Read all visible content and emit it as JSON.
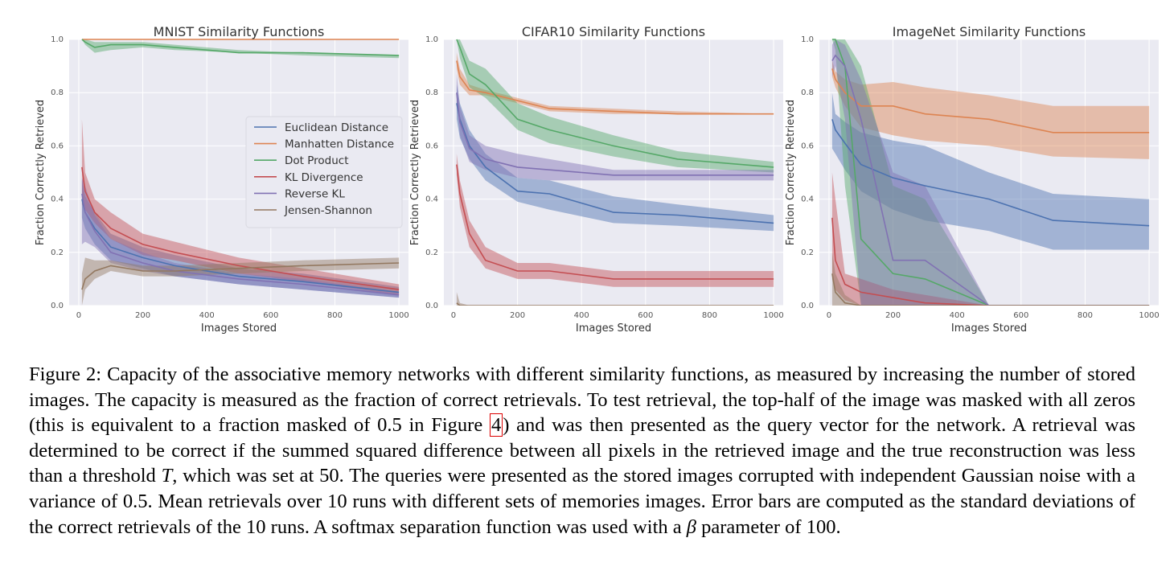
{
  "caption": {
    "part1": "Figure 2: Capacity of the associative memory networks with different similarity functions, as measured by increasing the number of stored images. The capacity is measured as the fraction of correct retrievals. To test retrieval, the top-half of the image was masked with all zeros (this is equivalent to a fraction masked of ",
    "math1": "0.5",
    "part2": " in Figure ",
    "ref": "4",
    "part3": ") and was then presented as the query vector for the network. A retrieval was determined to be correct if the summed squared difference between all pixels in the retrieved image and the true reconstruction was less than a threshold ",
    "math2": "T",
    "part4": ", which was set at ",
    "math3": "50",
    "part5": ". The queries were presented as the stored images corrupted with independent Gaussian noise with a variance of ",
    "math4": "0.5",
    "part6": ". Mean retrievals over 10 runs with different sets of memories images. Error bars are computed as the standard deviations of the correct retrievals of the 10 runs. A softmax separation function was used with a ",
    "math5": "β",
    "part7": " parameter of 100."
  },
  "colors": {
    "Euclidean Distance": "#4c72b0",
    "Manhatten Distance": "#dd8452",
    "Dot Product": "#55a868",
    "KL Divergence": "#c44e52",
    "Reverse KL": "#8172b3",
    "Jensen-Shannon": "#937860"
  },
  "chart_data": [
    {
      "type": "line",
      "title": "MNIST Similarity Functions",
      "xlabel": "Images Stored",
      "ylabel": "Fraction Correctly Retrieved",
      "xlim": [
        -30,
        1030
      ],
      "ylim": [
        0,
        1
      ],
      "xticks": [
        0,
        200,
        400,
        600,
        800,
        1000
      ],
      "yticks": [
        0.0,
        0.2,
        0.4,
        0.6,
        0.8,
        1.0
      ],
      "grid": true,
      "legend": "center-right",
      "x": [
        10,
        20,
        50,
        100,
        200,
        300,
        500,
        700,
        1000
      ],
      "series": [
        {
          "name": "Euclidean Distance",
          "values": [
            0.4,
            0.35,
            0.29,
            0.22,
            0.18,
            0.15,
            0.11,
            0.09,
            0.05
          ],
          "lower": [
            0.33,
            0.29,
            0.23,
            0.17,
            0.14,
            0.11,
            0.08,
            0.06,
            0.03
          ],
          "upper": [
            0.47,
            0.41,
            0.35,
            0.27,
            0.22,
            0.19,
            0.14,
            0.12,
            0.07
          ]
        },
        {
          "name": "Manhatten Distance",
          "values": [
            1.0,
            1.0,
            1.0,
            1.0,
            1.0,
            1.0,
            1.0,
            1.0,
            1.0
          ],
          "lower": [
            1.0,
            1.0,
            1.0,
            1.0,
            1.0,
            1.0,
            1.0,
            1.0,
            1.0
          ],
          "upper": [
            1.0,
            1.0,
            1.0,
            1.0,
            1.0,
            1.0,
            1.0,
            1.0,
            1.0
          ]
        },
        {
          "name": "Dot Product",
          "values": [
            1.0,
            0.99,
            0.97,
            0.98,
            0.98,
            0.97,
            0.95,
            0.95,
            0.94
          ],
          "lower": [
            1.0,
            0.98,
            0.95,
            0.96,
            0.97,
            0.96,
            0.95,
            0.94,
            0.93
          ],
          "upper": [
            1.0,
            1.0,
            0.99,
            0.99,
            0.99,
            0.98,
            0.96,
            0.95,
            0.94
          ]
        },
        {
          "name": "KL Divergence",
          "values": [
            0.52,
            0.43,
            0.35,
            0.29,
            0.23,
            0.2,
            0.15,
            0.11,
            0.06
          ],
          "lower": [
            0.38,
            0.36,
            0.31,
            0.25,
            0.19,
            0.17,
            0.12,
            0.09,
            0.04
          ],
          "upper": [
            0.7,
            0.5,
            0.4,
            0.35,
            0.27,
            0.24,
            0.18,
            0.14,
            0.08
          ]
        },
        {
          "name": "Reverse KL",
          "values": [
            0.42,
            0.35,
            0.28,
            0.2,
            0.16,
            0.13,
            0.1,
            0.08,
            0.04
          ],
          "lower": [
            0.23,
            0.24,
            0.22,
            0.16,
            0.13,
            0.11,
            0.08,
            0.06,
            0.03
          ],
          "upper": [
            0.48,
            0.45,
            0.34,
            0.25,
            0.2,
            0.16,
            0.12,
            0.1,
            0.05
          ]
        },
        {
          "name": "Jensen-Shannon",
          "values": [
            0.06,
            0.1,
            0.13,
            0.15,
            0.13,
            0.13,
            0.14,
            0.15,
            0.16
          ],
          "lower": [
            0.0,
            0.06,
            0.1,
            0.13,
            0.11,
            0.11,
            0.12,
            0.13,
            0.14
          ],
          "upper": [
            0.12,
            0.18,
            0.17,
            0.17,
            0.15,
            0.15,
            0.16,
            0.17,
            0.18
          ]
        }
      ]
    },
    {
      "type": "line",
      "title": "CIFAR10 Similarity Functions",
      "xlabel": "Images Stored",
      "ylabel": "Fraction Correctly Retrieved",
      "xlim": [
        -30,
        1030
      ],
      "ylim": [
        0,
        1
      ],
      "xticks": [
        0,
        200,
        400,
        600,
        800,
        1000
      ],
      "yticks": [
        0.0,
        0.2,
        0.4,
        0.6,
        0.8,
        1.0
      ],
      "grid": true,
      "x": [
        10,
        20,
        50,
        100,
        200,
        300,
        500,
        700,
        1000
      ],
      "series": [
        {
          "name": "Euclidean Distance",
          "values": [
            0.76,
            0.7,
            0.6,
            0.52,
            0.43,
            0.42,
            0.35,
            0.34,
            0.31
          ],
          "lower": [
            0.7,
            0.63,
            0.55,
            0.47,
            0.39,
            0.36,
            0.31,
            0.3,
            0.28
          ],
          "upper": [
            0.83,
            0.76,
            0.66,
            0.57,
            0.48,
            0.47,
            0.41,
            0.38,
            0.34
          ]
        },
        {
          "name": "Manhatten Distance",
          "values": [
            0.92,
            0.86,
            0.81,
            0.8,
            0.77,
            0.74,
            0.73,
            0.72,
            0.72
          ],
          "lower": [
            0.89,
            0.83,
            0.79,
            0.79,
            0.76,
            0.73,
            0.72,
            0.72,
            0.72
          ],
          "upper": [
            0.95,
            0.89,
            0.83,
            0.81,
            0.78,
            0.75,
            0.74,
            0.73,
            0.72
          ]
        },
        {
          "name": "Dot Product",
          "values": [
            1.0,
            0.97,
            0.87,
            0.83,
            0.7,
            0.66,
            0.6,
            0.55,
            0.52
          ],
          "lower": [
            1.0,
            0.93,
            0.82,
            0.78,
            0.66,
            0.61,
            0.56,
            0.52,
            0.5
          ],
          "upper": [
            1.0,
            1.0,
            0.92,
            0.89,
            0.76,
            0.71,
            0.64,
            0.58,
            0.54
          ]
        },
        {
          "name": "KL Divergence",
          "values": [
            0.53,
            0.42,
            0.27,
            0.17,
            0.13,
            0.13,
            0.1,
            0.1,
            0.1
          ],
          "lower": [
            0.49,
            0.37,
            0.22,
            0.14,
            0.1,
            0.1,
            0.07,
            0.07,
            0.07
          ],
          "upper": [
            0.57,
            0.47,
            0.32,
            0.22,
            0.16,
            0.16,
            0.13,
            0.13,
            0.13
          ]
        },
        {
          "name": "Reverse KL",
          "values": [
            0.8,
            0.69,
            0.59,
            0.55,
            0.52,
            0.51,
            0.49,
            0.49,
            0.49
          ],
          "lower": [
            0.75,
            0.64,
            0.54,
            0.51,
            0.48,
            0.47,
            0.47,
            0.47,
            0.47
          ],
          "upper": [
            0.87,
            0.75,
            0.64,
            0.6,
            0.57,
            0.55,
            0.51,
            0.51,
            0.51
          ]
        },
        {
          "name": "Jensen-Shannon",
          "values": [
            0.01,
            0.0,
            0.0,
            0.0,
            0.0,
            0.0,
            0.0,
            0.0,
            0.0
          ],
          "lower": [
            0.0,
            0.0,
            0.0,
            0.0,
            0.0,
            0.0,
            0.0,
            0.0,
            0.0
          ],
          "upper": [
            0.05,
            0.01,
            0.0,
            0.0,
            0.0,
            0.0,
            0.0,
            0.0,
            0.0
          ]
        }
      ]
    },
    {
      "type": "line",
      "title": "ImageNet Similarity Functions",
      "xlabel": "Images Stored",
      "ylabel": "Fraction Correctly Retrieved",
      "xlim": [
        -30,
        1030
      ],
      "ylim": [
        0,
        1
      ],
      "xticks": [
        0,
        200,
        400,
        600,
        800,
        1000
      ],
      "yticks": [
        0.0,
        0.2,
        0.4,
        0.6,
        0.8,
        1.0
      ],
      "grid": true,
      "x": [
        10,
        20,
        50,
        100,
        200,
        300,
        500,
        700,
        1000
      ],
      "series": [
        {
          "name": "Euclidean Distance",
          "values": [
            0.7,
            0.66,
            0.61,
            0.53,
            0.48,
            0.45,
            0.4,
            0.32,
            0.3
          ],
          "lower": [
            0.59,
            0.57,
            0.51,
            0.43,
            0.36,
            0.32,
            0.28,
            0.21,
            0.21
          ],
          "upper": [
            0.8,
            0.72,
            0.69,
            0.65,
            0.62,
            0.6,
            0.5,
            0.42,
            0.4
          ]
        },
        {
          "name": "Manhatten Distance",
          "values": [
            0.89,
            0.85,
            0.8,
            0.75,
            0.75,
            0.72,
            0.7,
            0.65,
            0.65
          ],
          "lower": [
            0.86,
            0.82,
            0.75,
            0.67,
            0.64,
            0.62,
            0.6,
            0.56,
            0.55
          ],
          "upper": [
            0.92,
            0.88,
            0.85,
            0.83,
            0.84,
            0.82,
            0.79,
            0.75,
            0.75
          ]
        },
        {
          "name": "Dot Product",
          "values": [
            1.0,
            1.0,
            0.9,
            0.25,
            0.12,
            0.1,
            0.0,
            0.0,
            0.0
          ],
          "lower": [
            1.0,
            0.96,
            0.45,
            0.0,
            0.0,
            0.0,
            0.0,
            0.0,
            0.0
          ],
          "upper": [
            1.0,
            1.0,
            1.0,
            0.9,
            0.45,
            0.4,
            0.0,
            0.0,
            0.0
          ]
        },
        {
          "name": "KL Divergence",
          "values": [
            0.33,
            0.17,
            0.08,
            0.05,
            0.03,
            0.01,
            0.0,
            0.0,
            0.0
          ],
          "lower": [
            0.1,
            0.06,
            0.02,
            0.0,
            0.0,
            0.0,
            0.0,
            0.0,
            0.0
          ],
          "upper": [
            0.5,
            0.4,
            0.12,
            0.1,
            0.06,
            0.04,
            0.0,
            0.0,
            0.0
          ]
        },
        {
          "name": "Reverse KL",
          "values": [
            0.92,
            0.94,
            0.9,
            0.7,
            0.17,
            0.17,
            0.0,
            0.0,
            0.0
          ],
          "lower": [
            0.86,
            0.9,
            0.7,
            0.0,
            0.0,
            0.0,
            0.0,
            0.0,
            0.0
          ],
          "upper": [
            0.98,
            1.0,
            0.98,
            0.85,
            0.5,
            0.45,
            0.0,
            0.0,
            0.0
          ]
        },
        {
          "name": "Jensen-Shannon",
          "values": [
            0.12,
            0.05,
            0.01,
            0.0,
            0.0,
            0.0,
            0.0,
            0.0,
            0.0
          ],
          "lower": [
            0.0,
            0.0,
            0.0,
            0.0,
            0.0,
            0.0,
            0.0,
            0.0,
            0.0
          ],
          "upper": [
            0.2,
            0.12,
            0.04,
            0.0,
            0.0,
            0.0,
            0.0,
            0.0,
            0.0
          ]
        }
      ]
    }
  ]
}
